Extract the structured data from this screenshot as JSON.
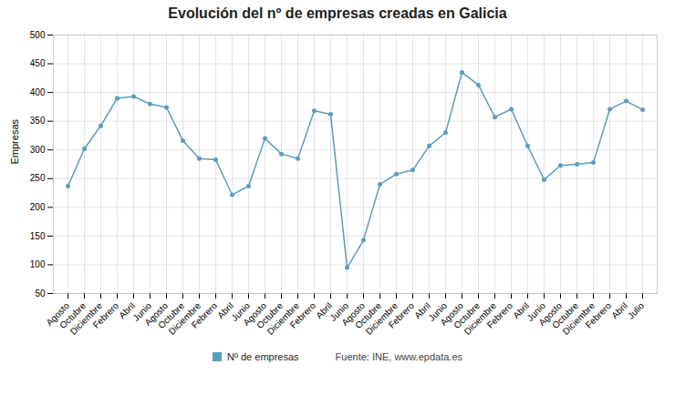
{
  "chart_data": {
    "type": "line",
    "title": "Evolución del nº de empresas creadas en Galicia",
    "ylabel": "Empresas",
    "caption": "Fuente: INE, www.epdata.es",
    "categories": [
      "Agosto",
      "Octubre",
      "Diciembre",
      "Febrero",
      "Abril",
      "Junio",
      "Agosto",
      "Octubre",
      "Diciembre",
      "Febrero",
      "Abril",
      "Junio",
      "Agosto",
      "Octubre",
      "Diciembre",
      "Febrero",
      "Abril",
      "Junio",
      "Agosto",
      "Octubre",
      "Diciembre",
      "Febrero",
      "Abril",
      "Junio",
      "Agosto",
      "Octubre",
      "Diciembre",
      "Febrero",
      "Abril",
      "Junio",
      "Agosto",
      "Octubre",
      "Diciembre",
      "Febrero",
      "Abril",
      "Julio"
    ],
    "series": [
      {
        "name": "Nº de empresas",
        "color": "#5b9dbe",
        "marker": "circle",
        "values": [
          237,
          302,
          342,
          390,
          393,
          380,
          374,
          316,
          285,
          283,
          222,
          237,
          320,
          293,
          285,
          368,
          362,
          95,
          143,
          240,
          258,
          265,
          307,
          330,
          435,
          413,
          357,
          371,
          307,
          248,
          273,
          275,
          278,
          371,
          385,
          370
        ]
      }
    ],
    "ylim": [
      50,
      500
    ],
    "yticks": [
      50,
      100,
      150,
      200,
      250,
      300,
      350,
      400,
      450,
      500
    ],
    "grid": true,
    "legend": "bottom"
  }
}
